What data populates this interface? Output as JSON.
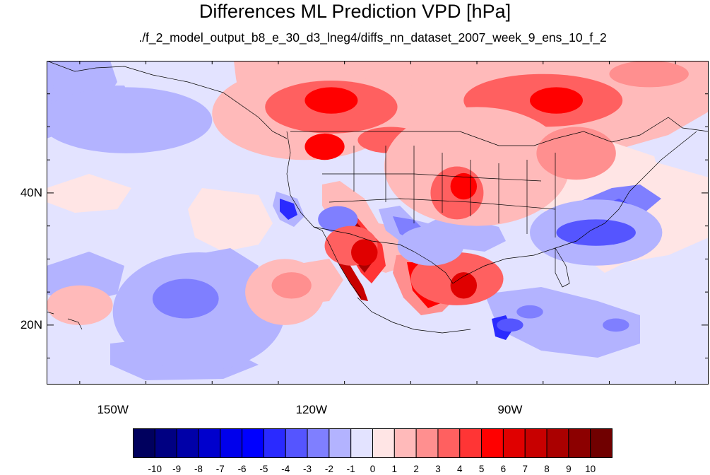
{
  "title": "Differences ML Prediction VPD [hPa]",
  "subtitle": "./f_2_model_output_b8_e_30_d3_lneg4/diffs_nn_dataset_2007_week_9_ens_10_f_2",
  "map": {
    "lon_range": [
      -160,
      -60
    ],
    "lat_range": [
      11,
      60
    ],
    "lat_labels": [
      {
        "label": "40N",
        "lat": 40
      },
      {
        "label": "20N",
        "lat": 20
      }
    ],
    "lon_labels": [
      {
        "label": "150W",
        "lon": -150
      },
      {
        "label": "120W",
        "lon": -120
      },
      {
        "label": "90W",
        "lon": -90
      }
    ],
    "background_level": -1,
    "anomalies": [
      {
        "lon": -148,
        "lat": 51,
        "rx": 13,
        "ry": 5,
        "level": -2
      },
      {
        "lon": -137,
        "lat": 22,
        "rx": 13,
        "ry": 9,
        "level": -2
      },
      {
        "lon": -139,
        "lat": 24,
        "rx": 5,
        "ry": 3,
        "level": -3
      },
      {
        "lon": -155,
        "lat": 23,
        "rx": 5,
        "ry": 3,
        "level": 1
      },
      {
        "lon": -124,
        "lat": 25,
        "rx": 6,
        "ry": 5,
        "level": 1
      },
      {
        "lon": -123,
        "lat": 26,
        "rx": 3,
        "ry": 2,
        "level": 2
      },
      {
        "lon": -121,
        "lat": 52,
        "rx": 14,
        "ry": 7,
        "level": 1
      },
      {
        "lon": -117,
        "lat": 53,
        "rx": 10,
        "ry": 4,
        "level": 3
      },
      {
        "lon": -117,
        "lat": 54,
        "rx": 4,
        "ry": 2,
        "level": 5
      },
      {
        "lon": -118,
        "lat": 47,
        "rx": 3,
        "ry": 2,
        "level": 5
      },
      {
        "lon": -108,
        "lat": 48,
        "rx": 5,
        "ry": 2,
        "level": 3
      },
      {
        "lon": -89,
        "lat": 53,
        "rx": 18,
        "ry": 7,
        "level": 1
      },
      {
        "lon": -85,
        "lat": 54,
        "rx": 12,
        "ry": 4,
        "level": 3
      },
      {
        "lon": -83,
        "lat": 54,
        "rx": 4,
        "ry": 2,
        "level": 5
      },
      {
        "lon": -95,
        "lat": 44,
        "rx": 14,
        "ry": 9,
        "level": 1
      },
      {
        "lon": -98,
        "lat": 40,
        "rx": 4,
        "ry": 4,
        "level": 3
      },
      {
        "lon": -97,
        "lat": 41,
        "rx": 2,
        "ry": 2,
        "level": 5
      },
      {
        "lon": -80,
        "lat": 46,
        "rx": 6,
        "ry": 4,
        "level": 2
      },
      {
        "lon": -116,
        "lat": 36,
        "rx": 3,
        "ry": 2,
        "level": -3
      },
      {
        "lon": -114,
        "lat": 32,
        "rx": 4,
        "ry": 3,
        "level": 3
      },
      {
        "lon": -112,
        "lat": 31,
        "rx": 2,
        "ry": 2,
        "level": 6
      },
      {
        "lon": -98,
        "lat": 27,
        "rx": 7,
        "ry": 4,
        "level": 3
      },
      {
        "lon": -97,
        "lat": 26,
        "rx": 2,
        "ry": 2,
        "level": 6
      },
      {
        "lon": -102,
        "lat": 32,
        "rx": 5,
        "ry": 3,
        "level": -2
      },
      {
        "lon": -77,
        "lat": 34,
        "rx": 10,
        "ry": 5,
        "level": -2
      },
      {
        "lon": -77,
        "lat": 34,
        "rx": 6,
        "ry": 2,
        "level": -4
      },
      {
        "lon": -90,
        "lat": 20,
        "rx": 2,
        "ry": 1,
        "level": -4
      },
      {
        "lon": -87,
        "lat": 22,
        "rx": 2,
        "ry": 1,
        "level": -3
      },
      {
        "lon": -74,
        "lat": 20,
        "rx": 2,
        "ry": 1,
        "level": -3
      },
      {
        "lon": -69,
        "lat": 58,
        "rx": 6,
        "ry": 2,
        "level": 2
      }
    ]
  },
  "colorbar": {
    "colors": [
      "#00005e",
      "#000082",
      "#0000a8",
      "#0000cd",
      "#0000ec",
      "#0000ff",
      "#2a2aff",
      "#5555ff",
      "#7f7fff",
      "#b3b3ff",
      "#e3e3ff",
      "#ffe5e5",
      "#ffbaba",
      "#ff8f8f",
      "#ff6060",
      "#ff3535",
      "#ff0000",
      "#e00000",
      "#c80000",
      "#aa0000",
      "#8c0000",
      "#700000"
    ],
    "labels": [
      "-10",
      "-9",
      "-8",
      "-7",
      "-6",
      "-5",
      "-4",
      "-3",
      "-2",
      "-1",
      "0",
      "1",
      "2",
      "3",
      "4",
      "5",
      "6",
      "7",
      "8",
      "9",
      "10"
    ]
  }
}
